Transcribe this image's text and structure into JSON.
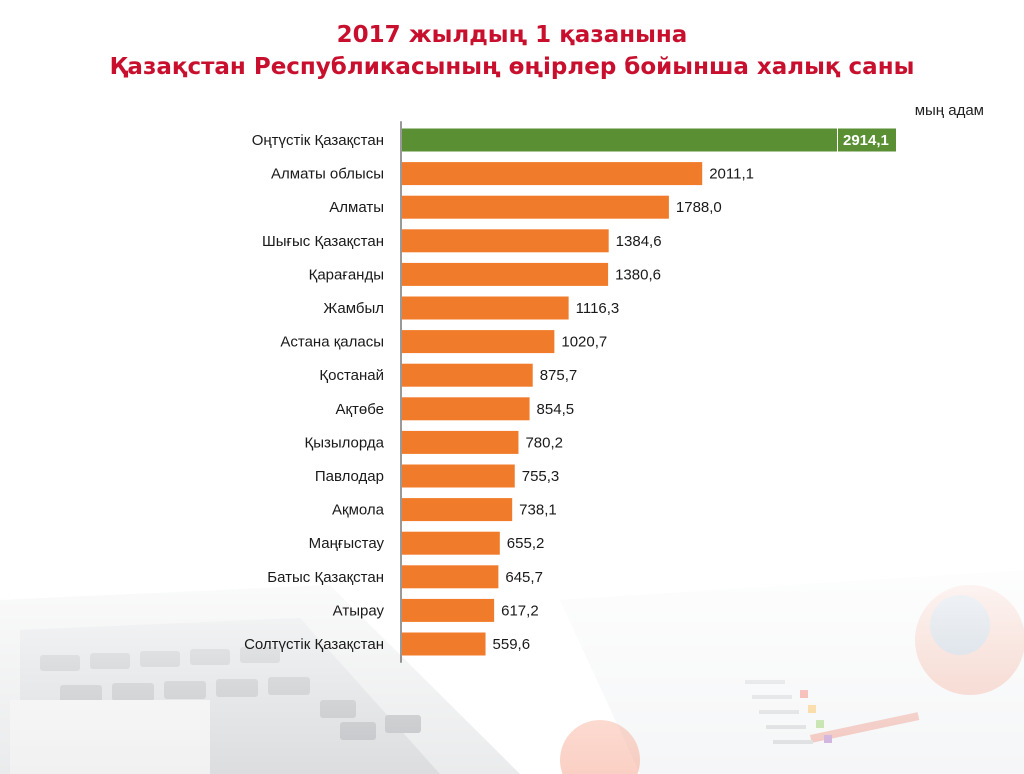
{
  "title": {
    "line1": "2017 жылдың 1 қазанына",
    "line2": "Қазақстан Республикасының өңірлер бойынша халық саны"
  },
  "unit_label": "мың адам",
  "colors": {
    "title": "#c8102e",
    "bar_default": "#f07b2a",
    "bar_highlight": "#5a8f34"
  },
  "chart_data": {
    "type": "bar",
    "orientation": "horizontal",
    "title": "2017 жылдың 1 қазанына Қазақстан Республикасының өңірлер бойынша халық саны",
    "unit": "мың адам",
    "categories": [
      "Оңтүстік Қазақстан",
      "Алматы облысы",
      "Алматы",
      "Шығыс Қазақстан",
      "Қарағанды",
      "Жамбыл",
      "Астана қаласы",
      "Қостанай",
      "Ақтөбе",
      "Қызылорда",
      "Павлодар",
      "Ақмола",
      "Маңғыстау",
      "Батыс Қазақстан",
      "Атырау",
      "Солтүстік Қазақстан"
    ],
    "values": [
      2914.1,
      2011.1,
      1788.0,
      1384.6,
      1380.6,
      1116.3,
      1020.7,
      875.7,
      854.5,
      780.2,
      755.3,
      738.1,
      655.2,
      645.7,
      617.2,
      559.6
    ],
    "value_labels": [
      "2914,1",
      "2011,1",
      "1788,0",
      "1384,6",
      "1380,6",
      "1116,3",
      "1020,7",
      "875,7",
      "854,5",
      "780,2",
      "755,3",
      "738,1",
      "655,2",
      "645,7",
      "617,2",
      "559,6"
    ],
    "highlight_index": 0,
    "grid": false,
    "legend": "none"
  }
}
